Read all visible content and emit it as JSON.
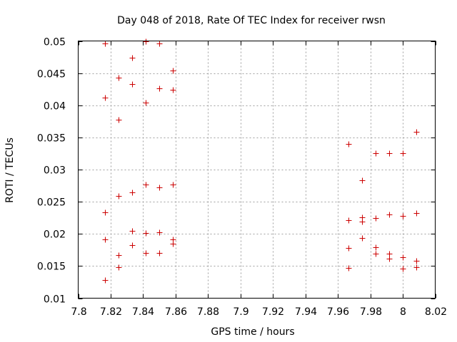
{
  "chart_data": {
    "type": "scatter",
    "title": "Day 048 of 2018, Rate Of TEC Index for receiver rwsn",
    "xlabel": "GPS time / hours",
    "ylabel": "ROTI / TECUs",
    "xlim": [
      7.8,
      8.02
    ],
    "ylim": [
      0.01,
      0.05
    ],
    "grid": true,
    "marker": "+",
    "color": "#cc0000",
    "xticks": [
      7.8,
      7.82,
      7.84,
      7.86,
      7.88,
      7.9,
      7.92,
      7.94,
      7.96,
      7.98,
      8.0,
      8.02
    ],
    "xtick_labels": [
      "7.8",
      "7.82",
      "7.84",
      "7.86",
      "7.88",
      "7.9",
      "7.92",
      "7.94",
      "7.96",
      "7.98",
      "8",
      "8.02"
    ],
    "yticks": [
      0.01,
      0.015,
      0.02,
      0.025,
      0.03,
      0.035,
      0.04,
      0.045,
      0.05
    ],
    "ytick_labels": [
      "0.01",
      "0.015",
      "0.02",
      "0.025",
      "0.03",
      "0.035",
      "0.04",
      "0.045",
      "0.05"
    ],
    "series": [
      {
        "name": "ROTI",
        "points": [
          [
            7.8167,
            0.0496
          ],
          [
            7.8167,
            0.0412
          ],
          [
            7.8167,
            0.0233
          ],
          [
            7.8167,
            0.0191
          ],
          [
            7.8167,
            0.0128
          ],
          [
            7.825,
            0.0443
          ],
          [
            7.825,
            0.0378
          ],
          [
            7.825,
            0.0259
          ],
          [
            7.825,
            0.0167
          ],
          [
            7.825,
            0.0148
          ],
          [
            7.8333,
            0.0474
          ],
          [
            7.8333,
            0.0433
          ],
          [
            7.8333,
            0.0264
          ],
          [
            7.8333,
            0.0205
          ],
          [
            7.8333,
            0.0183
          ],
          [
            7.8417,
            0.05
          ],
          [
            7.8417,
            0.0404
          ],
          [
            7.8417,
            0.0277
          ],
          [
            7.8417,
            0.0201
          ],
          [
            7.8417,
            0.017
          ],
          [
            7.85,
            0.0496
          ],
          [
            7.85,
            0.0426
          ],
          [
            7.85,
            0.0272
          ],
          [
            7.85,
            0.0203
          ],
          [
            7.85,
            0.017
          ],
          [
            7.8583,
            0.0454
          ],
          [
            7.8583,
            0.0424
          ],
          [
            7.8583,
            0.0277
          ],
          [
            7.8583,
            0.0191
          ],
          [
            7.8583,
            0.0185
          ],
          [
            7.9667,
            0.034
          ],
          [
            7.9667,
            0.0221
          ],
          [
            7.9667,
            0.0178
          ],
          [
            7.9667,
            0.0147
          ],
          [
            7.975,
            0.0283
          ],
          [
            7.975,
            0.0226
          ],
          [
            7.975,
            0.0219
          ],
          [
            7.975,
            0.0194
          ],
          [
            7.9833,
            0.0326
          ],
          [
            7.9833,
            0.0225
          ],
          [
            7.9833,
            0.0179
          ],
          [
            7.9833,
            0.0169
          ],
          [
            7.9917,
            0.0325
          ],
          [
            7.9917,
            0.023
          ],
          [
            7.9917,
            0.0169
          ],
          [
            7.9917,
            0.0162
          ],
          [
            8.0,
            0.0325
          ],
          [
            8.0,
            0.0228
          ],
          [
            8.0,
            0.0164
          ],
          [
            8.0,
            0.0146
          ],
          [
            8.0083,
            0.0359
          ],
          [
            8.0083,
            0.0232
          ],
          [
            8.0083,
            0.0158
          ],
          [
            8.0083,
            0.0148
          ]
        ]
      }
    ]
  }
}
